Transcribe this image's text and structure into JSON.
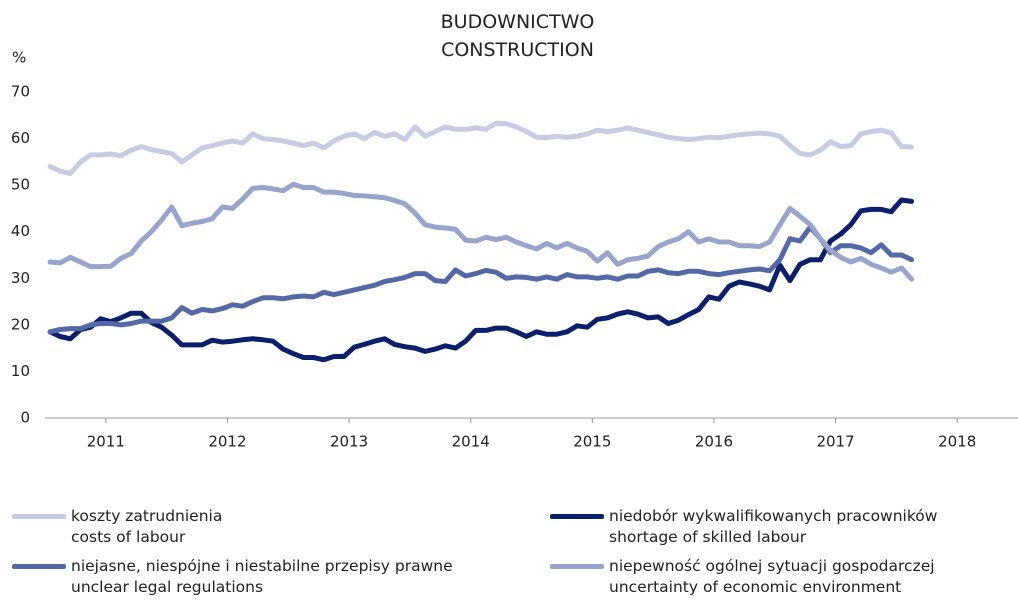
{
  "chart_data": {
    "type": "line",
    "title": "BUDOWNICTWO\nCONSTRUCTION",
    "y_label": "%",
    "x": [
      2011.042,
      2011.125,
      2011.208,
      2011.292,
      2011.375,
      2011.458,
      2011.542,
      2011.625,
      2011.708,
      2011.792,
      2011.875,
      2011.958,
      2012.042,
      2012.125,
      2012.208,
      2012.292,
      2012.375,
      2012.458,
      2012.542,
      2012.625,
      2012.708,
      2012.792,
      2012.875,
      2012.958,
      2013.042,
      2013.125,
      2013.208,
      2013.292,
      2013.375,
      2013.458,
      2013.542,
      2013.625,
      2013.708,
      2013.792,
      2013.875,
      2013.958,
      2014.042,
      2014.125,
      2014.208,
      2014.292,
      2014.375,
      2014.458,
      2014.542,
      2014.625,
      2014.708,
      2014.792,
      2014.875,
      2014.958,
      2015.042,
      2015.125,
      2015.208,
      2015.292,
      2015.375,
      2015.458,
      2015.542,
      2015.625,
      2015.708,
      2015.792,
      2015.875,
      2015.958,
      2016.042,
      2016.125,
      2016.208,
      2016.292,
      2016.375,
      2016.458,
      2016.542,
      2016.625,
      2016.708,
      2016.792,
      2016.875,
      2016.958,
      2017.042,
      2017.125,
      2017.208,
      2017.292,
      2017.375,
      2017.458,
      2017.542,
      2017.625,
      2017.708,
      2017.792,
      2017.875,
      2017.958,
      2018.042,
      2018.125
    ],
    "series": [
      {
        "name": "koszty zatrudnienia\ncosts of labour",
        "color": "#c8cce2",
        "values": [
          54,
          53,
          52.5,
          55,
          56.5,
          56.5,
          56.7,
          56.3,
          57.5,
          58.3,
          57.6,
          57.2,
          56.8,
          55,
          56.5,
          58,
          58.5,
          59,
          59.5,
          59,
          61,
          60,
          59.8,
          59.5,
          59,
          58.5,
          59,
          58,
          59.5,
          60.5,
          61,
          60,
          61.3,
          60.5,
          61,
          59.8,
          62.5,
          60.5,
          61.5,
          62.5,
          62,
          62,
          62.3,
          62,
          63.3,
          63.2,
          62.5,
          61.5,
          60.3,
          60.2,
          60.5,
          60.3,
          60.5,
          61,
          61.8,
          61.5,
          61.8,
          62.3,
          61.8,
          61.3,
          60.8,
          60.3,
          60,
          59.8,
          60,
          60.3,
          60.2,
          60.5,
          60.8,
          61,
          61.2,
          61,
          60.5,
          58.5,
          56.8,
          56.5,
          57.5,
          59.3,
          58.3,
          58.5,
          61,
          61.5,
          61.8,
          61.2,
          58.3,
          58.2
        ]
      },
      {
        "name": "niedobór wykwalifikowanych pracowników\nshortage of skilled labour",
        "color": "#0c1f6b",
        "values": [
          18.5,
          17.5,
          17,
          19,
          19.5,
          21.3,
          20.7,
          21.5,
          22.5,
          22.5,
          20.5,
          19.5,
          17.8,
          15.7,
          15.7,
          15.7,
          16.7,
          16.3,
          16.5,
          16.8,
          17,
          16.8,
          16.5,
          14.8,
          13.8,
          13,
          13,
          12.5,
          13.2,
          13.2,
          15.2,
          15.8,
          16.5,
          17,
          15.8,
          15.3,
          15,
          14.3,
          14.8,
          15.5,
          15,
          16.5,
          18.8,
          18.8,
          19.3,
          19.3,
          18.5,
          17.5,
          18.5,
          18,
          18,
          18.5,
          19.8,
          19.5,
          21.2,
          21.5,
          22.3,
          22.8,
          22.3,
          21.5,
          21.7,
          20.3,
          21,
          22.2,
          23.3,
          26,
          25.5,
          28.3,
          29.2,
          28.8,
          28.3,
          27.5,
          32.8,
          29.5,
          33,
          34,
          34,
          38,
          39.5,
          41.5,
          44.5,
          44.8,
          44.8,
          44.3,
          46.8,
          46.5
        ]
      },
      {
        "name": "niejasne, niespójne i niestabilne przepisy prawne\nunclear legal regulations",
        "color": "#5568a6",
        "values": [
          18.5,
          19,
          19.2,
          19.2,
          20,
          20.3,
          20.3,
          20,
          20.3,
          20.8,
          20.8,
          20.8,
          21.5,
          23.7,
          22.5,
          23.3,
          23,
          23.5,
          24.3,
          24,
          25,
          25.8,
          25.8,
          25.6,
          26,
          26.2,
          26,
          27,
          26.5,
          27,
          27.5,
          28,
          28.5,
          29.3,
          29.7,
          30.2,
          31,
          31,
          29.5,
          29.3,
          31.8,
          30.5,
          31,
          31.7,
          31.3,
          30,
          30.3,
          30.2,
          29.8,
          30.3,
          29.8,
          30.8,
          30.3,
          30.3,
          30,
          30.3,
          29.8,
          30.5,
          30.5,
          31.5,
          31.8,
          31.2,
          31,
          31.5,
          31.5,
          31,
          30.8,
          31.2,
          31.5,
          31.8,
          32,
          31.6,
          34,
          38.5,
          38,
          41,
          38.5,
          35.5,
          37,
          37,
          36.5,
          35.5,
          37.2,
          35,
          35,
          34
        ]
      },
      {
        "name": "niepewność ogólnej sytuacji gospodarczej\nuncertainty of economic environment",
        "color": "#99a4cc",
        "values": [
          33.5,
          33.3,
          34.5,
          33.5,
          32.5,
          32.5,
          32.6,
          34.3,
          35.3,
          38,
          40,
          42.5,
          45.3,
          41.3,
          41.8,
          42.2,
          42.8,
          45.3,
          45,
          47,
          49.3,
          49.5,
          49.2,
          48.8,
          50.2,
          49.5,
          49.5,
          48.5,
          48.5,
          48.2,
          47.8,
          47.7,
          47.5,
          47.3,
          46.7,
          46,
          44,
          41.5,
          41,
          40.8,
          40.5,
          38.2,
          38,
          38.8,
          38.3,
          38.8,
          37.8,
          37,
          36.3,
          37.5,
          36.5,
          37.5,
          36.5,
          35.8,
          33.7,
          35.5,
          33,
          34,
          34.3,
          34.8,
          36.8,
          37.8,
          38.5,
          40,
          37.8,
          38.5,
          37.8,
          37.8,
          37,
          37,
          36.8,
          37.8,
          41.5,
          45,
          43.3,
          41.5,
          38.5,
          36,
          34.5,
          33.5,
          34.3,
          33,
          32.2,
          31.3,
          32.2,
          29.8
        ]
      }
    ],
    "xlim": [
      2011,
      2019
    ],
    "xticks": [
      {
        "value": 2011.5,
        "label": "2011"
      },
      {
        "value": 2012.5,
        "label": "2012"
      },
      {
        "value": 2013.5,
        "label": "2013"
      },
      {
        "value": 2014.5,
        "label": "2014"
      },
      {
        "value": 2015.5,
        "label": "2015"
      },
      {
        "value": 2016.5,
        "label": "2016"
      },
      {
        "value": 2017.5,
        "label": "2017"
      },
      {
        "value": 2018.5,
        "label": "2018"
      }
    ],
    "ylim": [
      0,
      70
    ],
    "yticks": [
      0,
      10,
      20,
      30,
      40,
      50,
      60,
      70
    ],
    "grid": false
  }
}
